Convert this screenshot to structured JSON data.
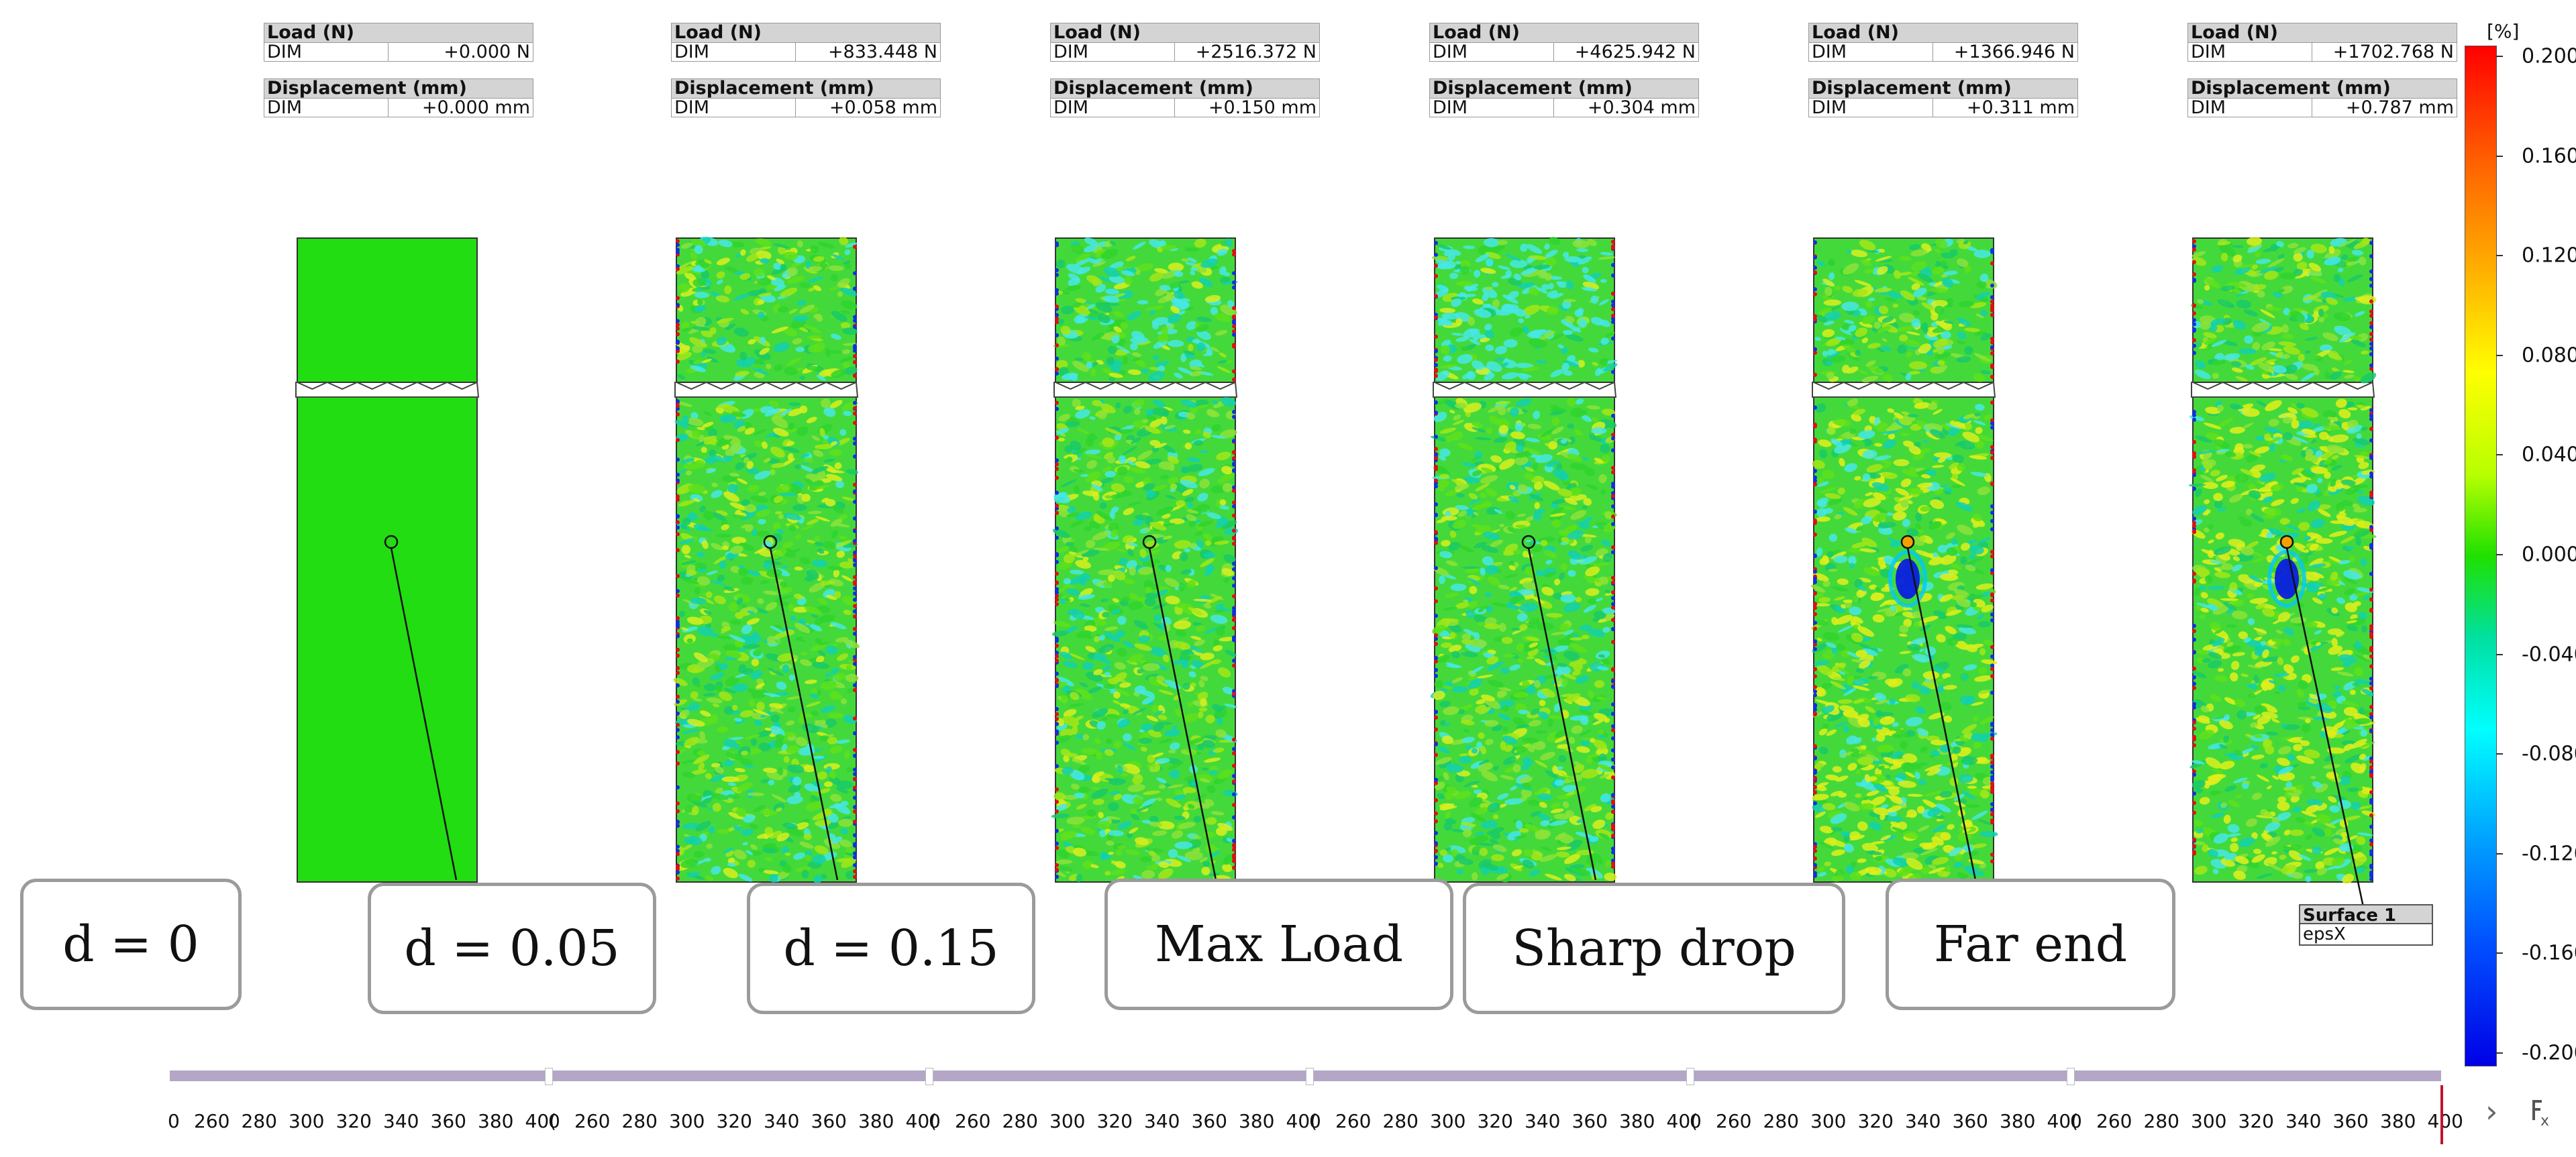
{
  "panels": [
    {
      "load_title": "Load (N)",
      "load_key": "DIM",
      "load_value": "+0.000 N",
      "disp_title": "Displacement (mm)",
      "disp_key": "DIM",
      "disp_value": "+0.000 mm",
      "label": "d = 0"
    },
    {
      "load_title": "Load (N)",
      "load_key": "DIM",
      "load_value": "+833.448 N",
      "disp_title": "Displacement (mm)",
      "disp_key": "DIM",
      "disp_value": "+0.058 mm",
      "label": "d = 0.05"
    },
    {
      "load_title": "Load (N)",
      "load_key": "DIM",
      "load_value": "+2516.372 N",
      "disp_title": "Displacement (mm)",
      "disp_key": "DIM",
      "disp_value": "+0.150 mm",
      "label": "d = 0.15"
    },
    {
      "load_title": "Load (N)",
      "load_key": "DIM",
      "load_value": "+4625.942 N",
      "disp_title": "Displacement (mm)",
      "disp_key": "DIM",
      "disp_value": "+0.304 mm",
      "label": "Max Load"
    },
    {
      "load_title": "Load (N)",
      "load_key": "DIM",
      "load_value": "+1366.946 N",
      "disp_title": "Displacement (mm)",
      "disp_key": "DIM",
      "disp_value": "+0.311 mm",
      "label": "Sharp drop"
    },
    {
      "load_title": "Load (N)",
      "load_key": "DIM",
      "load_value": "+1702.768 N",
      "disp_title": "Displacement (mm)",
      "disp_key": "DIM",
      "disp_value": "+0.787 mm",
      "label": "Far end"
    }
  ],
  "colorbar": {
    "unit": "[%]",
    "ticks": [
      "0.200",
      "0.160",
      "0.120",
      "0.080",
      "0.040",
      "0.000",
      "-0.040",
      "-0.080",
      "-0.120",
      "-0.160",
      "-0.200"
    ]
  },
  "surface_tag": {
    "title": "Surface 1",
    "value": "epsX"
  },
  "timeline": {
    "labels": [
      "0",
      "260",
      "280",
      "300",
      "320",
      "340",
      "360",
      "380",
      "40(",
      "0",
      "260",
      "280",
      "300",
      "320",
      "340",
      "360",
      "380",
      "40(",
      "0",
      "260",
      "280",
      "300",
      "320",
      "340",
      "360",
      "380",
      "40(",
      "0",
      "260",
      "280",
      "300",
      "320",
      "340",
      "360",
      "380",
      "40(",
      "0",
      "260",
      "280",
      "300",
      "320",
      "340",
      "360",
      "380",
      "40(",
      "0",
      "260",
      "280",
      "300",
      "320",
      "340",
      "360",
      "380",
      "400"
    ]
  },
  "nav": {
    "next_icon": "chevron-right-icon",
    "clear_icon": "clear-filter-icon"
  },
  "colors": {
    "specimen_base": "#1fd21f",
    "specimen_uniform": "#22dd11",
    "cursor": "#c0142b"
  }
}
